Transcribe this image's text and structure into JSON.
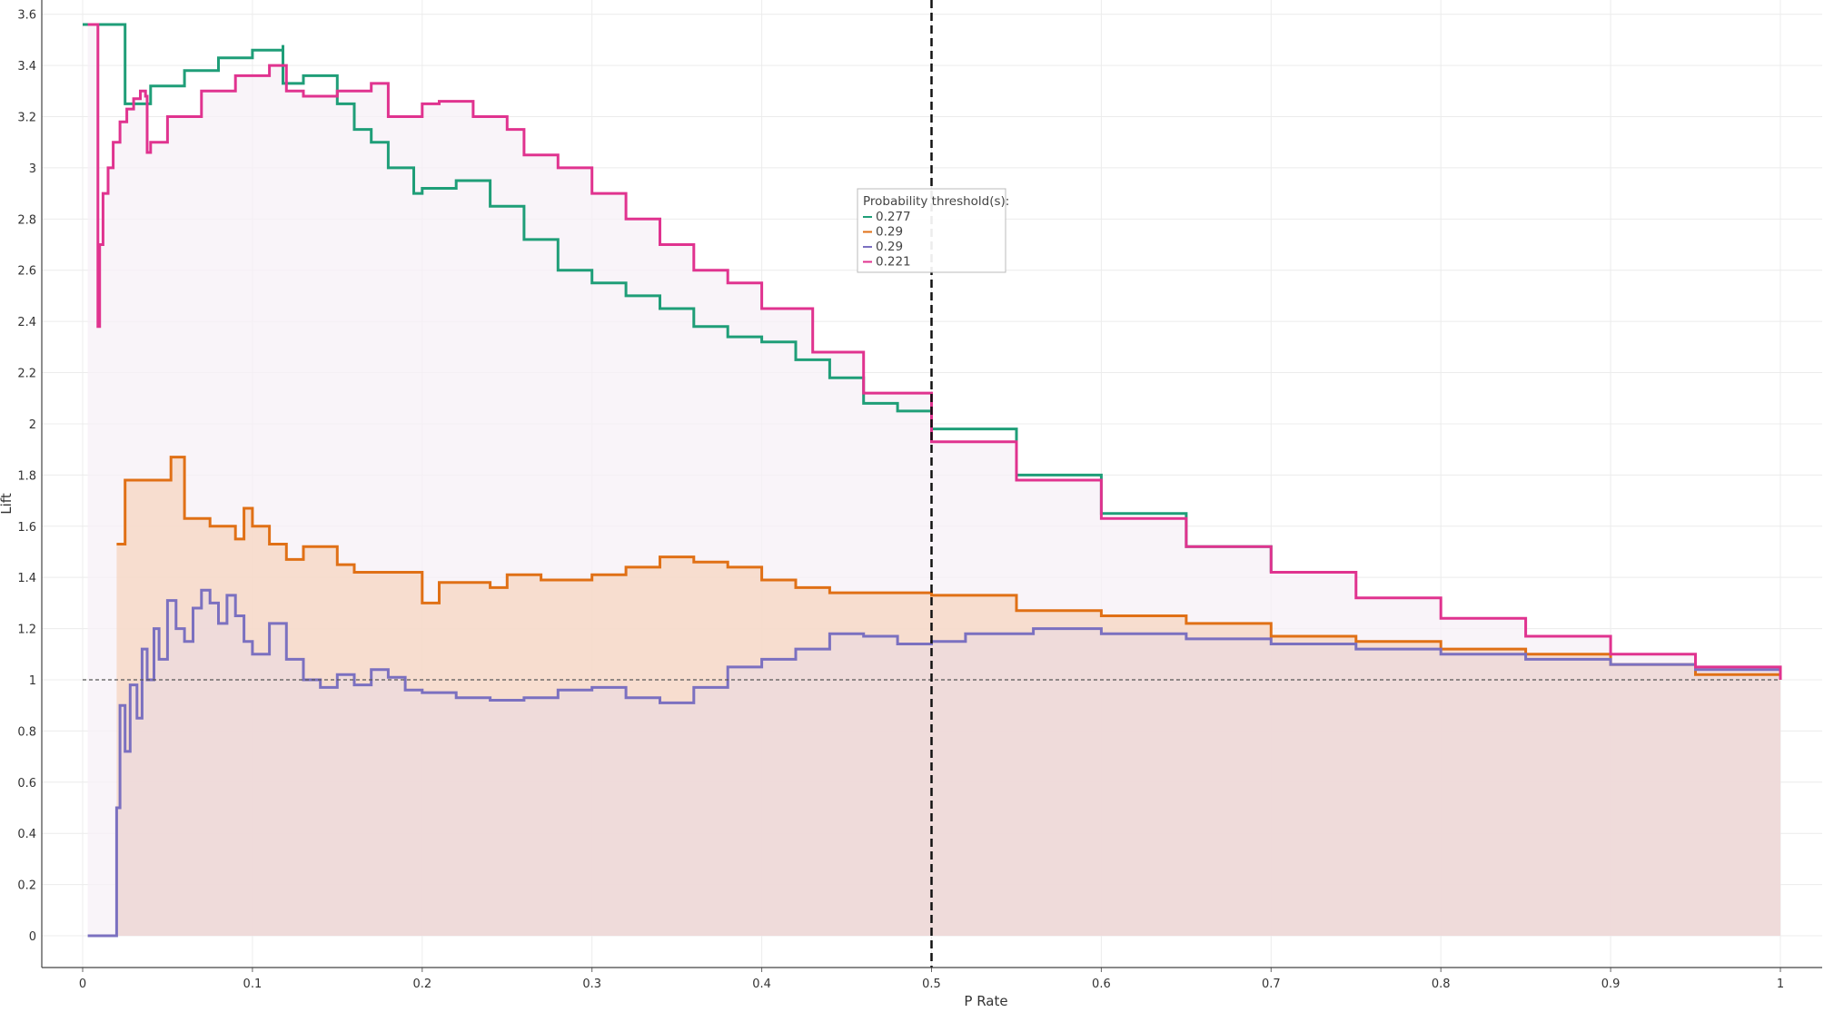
{
  "chart_data": {
    "type": "line",
    "title": "",
    "xlabel": "P Rate",
    "ylabel": "Lift",
    "xlim": [
      0,
      1
    ],
    "ylim": [
      -0.13,
      3.62
    ],
    "x_ticks": [
      "0",
      "0.1",
      "0.2",
      "0.3",
      "0.4",
      "0.5",
      "0.6",
      "0.7",
      "0.8",
      "0.9",
      "1"
    ],
    "y_ticks": [
      "0",
      "0.2",
      "0.4",
      "0.6",
      "0.8",
      "1",
      "1.2",
      "1.4",
      "1.6",
      "1.8",
      "2",
      "2.2",
      "2.4",
      "2.6",
      "2.8",
      "3",
      "3.2",
      "3.4",
      "3.6"
    ],
    "grid": true,
    "baseline_y": 1,
    "threshold_x": 0.5,
    "legend": {
      "title": "Probability threshold(s):",
      "placement": "top-center",
      "entries": [
        "0.277",
        "0.29",
        "0.29",
        "0.221"
      ]
    },
    "series": [
      {
        "color": "#1f9e78",
        "fill": false,
        "x": [
          0.0,
          0.025,
          0.025,
          0.04,
          0.06,
          0.08,
          0.1,
          0.118,
          0.118,
          0.13,
          0.15,
          0.16,
          0.17,
          0.18,
          0.195,
          0.2,
          0.22,
          0.24,
          0.26,
          0.28,
          0.3,
          0.32,
          0.34,
          0.36,
          0.38,
          0.4,
          0.42,
          0.44,
          0.46,
          0.48,
          0.5,
          0.55,
          0.6,
          0.65,
          0.7
        ],
        "y": [
          3.56,
          3.56,
          3.25,
          3.32,
          3.38,
          3.43,
          3.46,
          3.48,
          3.33,
          3.36,
          3.25,
          3.15,
          3.1,
          3.0,
          2.9,
          2.92,
          2.95,
          2.85,
          2.72,
          2.6,
          2.55,
          2.5,
          2.45,
          2.38,
          2.34,
          2.32,
          2.25,
          2.18,
          2.08,
          2.05,
          1.98,
          1.8,
          1.65,
          1.52,
          1.42
        ]
      },
      {
        "color": "#e07016",
        "fill": true,
        "fill_color": "#f5d5c0",
        "x": [
          0.02,
          0.025,
          0.025,
          0.045,
          0.052,
          0.06,
          0.06,
          0.075,
          0.09,
          0.095,
          0.1,
          0.11,
          0.12,
          0.13,
          0.15,
          0.16,
          0.19,
          0.2,
          0.21,
          0.24,
          0.25,
          0.27,
          0.3,
          0.32,
          0.34,
          0.36,
          0.38,
          0.4,
          0.42,
          0.44,
          0.46,
          0.48,
          0.5,
          0.55,
          0.6,
          0.65,
          0.7,
          0.75,
          0.8,
          0.85,
          0.9,
          0.95,
          1.0
        ],
        "y": [
          1.53,
          1.53,
          1.78,
          1.78,
          1.87,
          1.87,
          1.63,
          1.6,
          1.55,
          1.67,
          1.6,
          1.53,
          1.47,
          1.52,
          1.45,
          1.42,
          1.42,
          1.3,
          1.38,
          1.36,
          1.41,
          1.39,
          1.41,
          1.44,
          1.48,
          1.46,
          1.44,
          1.39,
          1.36,
          1.34,
          1.34,
          1.34,
          1.33,
          1.27,
          1.25,
          1.22,
          1.17,
          1.15,
          1.12,
          1.1,
          1.06,
          1.02,
          1.0
        ]
      },
      {
        "color": "#7b70c0",
        "fill": true,
        "fill_color": "#ecd9de",
        "x": [
          0.003,
          0.018,
          0.02,
          0.022,
          0.025,
          0.028,
          0.032,
          0.035,
          0.038,
          0.042,
          0.045,
          0.05,
          0.055,
          0.06,
          0.065,
          0.07,
          0.075,
          0.08,
          0.085,
          0.09,
          0.095,
          0.1,
          0.11,
          0.12,
          0.13,
          0.14,
          0.15,
          0.16,
          0.17,
          0.18,
          0.19,
          0.2,
          0.22,
          0.24,
          0.26,
          0.28,
          0.3,
          0.32,
          0.34,
          0.36,
          0.38,
          0.4,
          0.42,
          0.44,
          0.46,
          0.48,
          0.5,
          0.52,
          0.56,
          0.6,
          0.65,
          0.7,
          0.75,
          0.8,
          0.85,
          0.9,
          0.95,
          1.0
        ],
        "y": [
          0.0,
          0.0,
          0.5,
          0.9,
          0.72,
          0.98,
          0.85,
          1.12,
          1.0,
          1.2,
          1.08,
          1.31,
          1.2,
          1.15,
          1.28,
          1.35,
          1.3,
          1.22,
          1.33,
          1.25,
          1.15,
          1.1,
          1.22,
          1.08,
          1.0,
          0.97,
          1.02,
          0.98,
          1.04,
          1.01,
          0.96,
          0.95,
          0.93,
          0.92,
          0.93,
          0.96,
          0.97,
          0.93,
          0.91,
          0.97,
          1.05,
          1.08,
          1.12,
          1.18,
          1.17,
          1.14,
          1.15,
          1.18,
          1.2,
          1.18,
          1.16,
          1.14,
          1.12,
          1.1,
          1.08,
          1.06,
          1.04,
          1.0
        ]
      },
      {
        "color": "#e0338f",
        "fill": true,
        "fill_color": "#f7f0f7",
        "x": [
          0.003,
          0.008,
          0.009,
          0.01,
          0.012,
          0.015,
          0.018,
          0.022,
          0.026,
          0.03,
          0.034,
          0.037,
          0.038,
          0.04,
          0.05,
          0.07,
          0.09,
          0.11,
          0.12,
          0.13,
          0.15,
          0.17,
          0.18,
          0.2,
          0.21,
          0.23,
          0.25,
          0.26,
          0.28,
          0.3,
          0.32,
          0.34,
          0.36,
          0.38,
          0.4,
          0.43,
          0.46,
          0.5,
          0.55,
          0.6,
          0.65,
          0.7,
          0.75,
          0.8,
          0.85,
          0.9,
          0.95,
          1.0
        ],
        "y": [
          3.56,
          3.56,
          2.38,
          2.7,
          2.9,
          3.0,
          3.1,
          3.18,
          3.23,
          3.27,
          3.3,
          3.28,
          3.06,
          3.1,
          3.2,
          3.3,
          3.36,
          3.4,
          3.3,
          3.28,
          3.3,
          3.33,
          3.2,
          3.25,
          3.26,
          3.2,
          3.15,
          3.05,
          3.0,
          2.9,
          2.8,
          2.7,
          2.6,
          2.55,
          2.45,
          2.28,
          2.12,
          1.93,
          1.78,
          1.63,
          1.52,
          1.42,
          1.32,
          1.24,
          1.17,
          1.1,
          1.05,
          1.0
        ]
      }
    ]
  }
}
